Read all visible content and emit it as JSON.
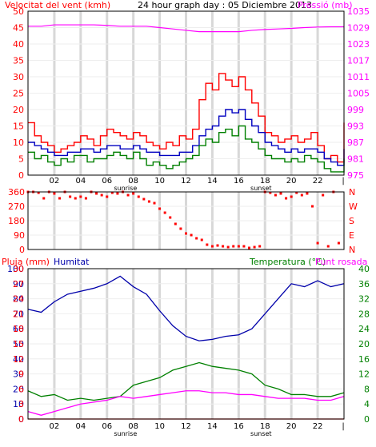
{
  "header": {
    "left_title": "Velocitat del vent (kmh)",
    "center_title": "24 hour graph day : 05 Diciembre 2013",
    "right_title": "Pressió (mb)"
  },
  "colors": {
    "gust": "#ff0000",
    "wind": "#0000c0",
    "wind_green": "#008000",
    "pressure": "#ff00ff",
    "direction": "#ff0000",
    "humidity": "#0000aa",
    "temperature": "#008000",
    "dewpoint": "#ff00ff",
    "rain": "#ff0000",
    "grid_band": "#d8d8d8",
    "frame": "#000000"
  },
  "chart_data": [
    {
      "type": "line",
      "panel": "wind-pressure",
      "x_tick_labels": [
        "02",
        "04",
        "06",
        "08",
        "10",
        "12",
        "14",
        "16",
        "18",
        "20",
        "22"
      ],
      "sunrise_label": "sunrise",
      "sunset_label": "sunset",
      "y_left": {
        "label": "Velocitat del vent (kmh)",
        "ticks": [
          "50",
          "45",
          "40",
          "35",
          "30",
          "25",
          "20",
          "15",
          "10",
          "5",
          "0"
        ],
        "lim": [
          0,
          50
        ]
      },
      "y_right": {
        "label": "Pressió (mb)",
        "ticks": [
          "1035",
          "1029",
          "1023",
          "1017",
          "1011",
          "1005",
          "999",
          "993",
          "987",
          "981",
          "975"
        ],
        "lim": [
          975,
          1035
        ]
      },
      "grid": true,
      "series": [
        {
          "key": "gust",
          "hours": [
            0,
            0.5,
            1,
            1.5,
            2,
            2.5,
            3,
            3.5,
            4,
            4.5,
            5,
            5.5,
            6,
            6.5,
            7,
            7.5,
            8,
            8.5,
            9,
            9.5,
            10,
            10.5,
            11,
            11.5,
            12,
            12.5,
            13,
            13.5,
            14,
            14.5,
            15,
            15.5,
            16,
            16.5,
            17,
            17.5,
            18,
            18.5,
            19,
            19.5,
            20,
            20.5,
            21,
            21.5,
            22,
            22.5,
            23,
            23.5,
            24
          ],
          "values": [
            16,
            12,
            10,
            9,
            7,
            8,
            9,
            10,
            12,
            11,
            9,
            12,
            14,
            13,
            12,
            11,
            13,
            12,
            10,
            9,
            8,
            10,
            9,
            12,
            11,
            14,
            23,
            28,
            26,
            31,
            29,
            27,
            30,
            26,
            22,
            18,
            13,
            12,
            10,
            11,
            12,
            10,
            11,
            13,
            9,
            5,
            6,
            4,
            16
          ]
        },
        {
          "key": "wind",
          "hours": [
            0,
            0.5,
            1,
            1.5,
            2,
            2.5,
            3,
            3.5,
            4,
            4.5,
            5,
            5.5,
            6,
            6.5,
            7,
            7.5,
            8,
            8.5,
            9,
            9.5,
            10,
            10.5,
            11,
            11.5,
            12,
            12.5,
            13,
            13.5,
            14,
            14.5,
            15,
            15.5,
            16,
            16.5,
            17,
            17.5,
            18,
            18.5,
            19,
            19.5,
            20,
            20.5,
            21,
            21.5,
            22,
            22.5,
            23,
            23.5,
            24
          ],
          "values": [
            10,
            9,
            8,
            7,
            6,
            6,
            7,
            7,
            8,
            8,
            7,
            8,
            9,
            9,
            8,
            8,
            9,
            8,
            7,
            7,
            6,
            6,
            6,
            7,
            7,
            9,
            12,
            14,
            15,
            18,
            20,
            19,
            20,
            17,
            15,
            13,
            10,
            9,
            8,
            7,
            8,
            7,
            8,
            8,
            7,
            5,
            4,
            3,
            8
          ]
        },
        {
          "key": "wind_green",
          "hours": [
            0,
            0.5,
            1,
            1.5,
            2,
            2.5,
            3,
            3.5,
            4,
            4.5,
            5,
            5.5,
            6,
            6.5,
            7,
            7.5,
            8,
            8.5,
            9,
            9.5,
            10,
            10.5,
            11,
            11.5,
            12,
            12.5,
            13,
            13.5,
            14,
            14.5,
            15,
            15.5,
            16,
            16.5,
            17,
            17.5,
            18,
            18.5,
            19,
            19.5,
            20,
            20.5,
            21,
            21.5,
            22,
            22.5,
            23,
            23.5,
            24
          ],
          "values": [
            7,
            5,
            6,
            4,
            3,
            5,
            4,
            6,
            6,
            4,
            5,
            5,
            6,
            7,
            6,
            5,
            7,
            5,
            3,
            4,
            3,
            2,
            3,
            4,
            5,
            6,
            9,
            11,
            10,
            13,
            14,
            12,
            15,
            11,
            10,
            8,
            6,
            5,
            5,
            4,
            5,
            4,
            6,
            5,
            4,
            2,
            1,
            1,
            5
          ]
        },
        {
          "key": "pressure",
          "hours": [
            0,
            1,
            2,
            3,
            4,
            5,
            6,
            7,
            8,
            9,
            10,
            11,
            12,
            13,
            14,
            15,
            16,
            17,
            18,
            19,
            20,
            21,
            22,
            23,
            24
          ],
          "values": [
            1029.5,
            1029.5,
            1030,
            1030,
            1030,
            1030,
            1029.8,
            1029.5,
            1029.5,
            1029.5,
            1029,
            1028.5,
            1028,
            1027.5,
            1027.5,
            1027.5,
            1027.5,
            1028,
            1028.3,
            1028.5,
            1028.7,
            1029,
            1029.2,
            1029.3,
            1029.3
          ]
        }
      ]
    },
    {
      "type": "scatter",
      "panel": "wind-direction",
      "y_left_ticks": [
        "360",
        "270",
        "180",
        "90",
        "0"
      ],
      "y_right_ticks": [
        "N",
        "W",
        "S",
        "E",
        "N"
      ],
      "ylim": [
        0,
        360
      ],
      "hours": [
        0,
        0.4,
        0.8,
        1.2,
        1.6,
        2,
        2.4,
        2.8,
        3.2,
        3.6,
        4,
        4.4,
        4.8,
        5.2,
        5.6,
        6,
        6.4,
        6.8,
        7.2,
        7.6,
        8,
        8.4,
        8.8,
        9.2,
        9.6,
        10,
        10.4,
        10.8,
        11.2,
        11.6,
        12,
        12.4,
        12.8,
        13.2,
        13.6,
        14,
        14.4,
        14.8,
        15.2,
        15.6,
        16,
        16.4,
        16.8,
        17.2,
        17.6,
        18,
        18.4,
        18.8,
        19.2,
        19.6,
        20,
        20.4,
        20.8,
        21.2,
        21.6,
        22,
        22.4,
        22.8,
        23.2,
        23.6
      ],
      "degrees": [
        360,
        360,
        355,
        320,
        360,
        350,
        320,
        360,
        330,
        320,
        330,
        320,
        360,
        350,
        340,
        330,
        355,
        350,
        360,
        340,
        350,
        330,
        315,
        300,
        290,
        255,
        230,
        200,
        160,
        130,
        100,
        90,
        70,
        60,
        30,
        20,
        25,
        20,
        15,
        20,
        20,
        20,
        10,
        15,
        20,
        360,
        355,
        340,
        350,
        320,
        330,
        355,
        340,
        350,
        270,
        40,
        340,
        20,
        360,
        40
      ]
    },
    {
      "type": "line",
      "panel": "humidity-temperature",
      "x_tick_labels": [
        "02",
        "04",
        "06",
        "08",
        "10",
        "12",
        "14",
        "16",
        "18",
        "20",
        "22"
      ],
      "sunrise_label": "sunrise",
      "sunset_label": "sunset",
      "legend": {
        "rain": "Pluja (mm)",
        "humidity": "Humitat",
        "temperature": "Temperatura (°C)",
        "dewpoint": "Punt rosada"
      },
      "y_left_rain_ticks": [
        "30",
        "27",
        "24",
        "21",
        "18",
        "15",
        "12",
        "9",
        "6",
        "3",
        "0"
      ],
      "y_left_humidity_ticks": [
        "100",
        "90",
        "80",
        "70",
        "60",
        "50",
        "40",
        "30",
        "20",
        "10",
        "0"
      ],
      "y_right_ticks": [
        "40",
        "36",
        "32",
        "28",
        "24",
        "20",
        "16",
        "12",
        "8",
        "4",
        "0"
      ],
      "ylim_humidity": [
        0,
        100
      ],
      "ylim_temperature": [
        0,
        40
      ],
      "ylim_rain": [
        0,
        30
      ],
      "grid": true,
      "series": [
        {
          "key": "humidity",
          "hours": [
            0,
            1,
            2,
            3,
            4,
            5,
            6,
            7,
            8,
            9,
            10,
            11,
            12,
            13,
            14,
            15,
            16,
            17,
            18,
            19,
            20,
            21,
            22,
            23,
            24
          ],
          "values": [
            73,
            71,
            78,
            83,
            85,
            87,
            90,
            95,
            88,
            83,
            72,
            62,
            55,
            52,
            53,
            55,
            56,
            60,
            70,
            80,
            90,
            88,
            92,
            88,
            90
          ]
        },
        {
          "key": "temperature",
          "hours": [
            0,
            1,
            2,
            3,
            4,
            5,
            6,
            7,
            8,
            9,
            10,
            11,
            12,
            13,
            14,
            15,
            16,
            17,
            18,
            19,
            20,
            21,
            22,
            23,
            24
          ],
          "values": [
            7.5,
            6,
            6.5,
            5,
            5.5,
            5,
            5.5,
            6,
            9,
            10,
            11,
            13,
            14,
            15,
            14,
            13.5,
            13,
            12,
            9,
            8,
            6.5,
            6.5,
            6,
            6,
            7
          ]
        },
        {
          "key": "dewpoint",
          "hours": [
            0,
            1,
            2,
            3,
            4,
            5,
            6,
            7,
            8,
            9,
            10,
            11,
            12,
            13,
            14,
            15,
            16,
            17,
            18,
            19,
            20,
            21,
            22,
            23,
            24
          ],
          "values": [
            2,
            1,
            2,
            3,
            4,
            4.5,
            5,
            6,
            5.5,
            6,
            6.5,
            7,
            7.5,
            7.5,
            7,
            7,
            6.5,
            6.5,
            6,
            5.5,
            5.5,
            5.5,
            5,
            5,
            6
          ]
        },
        {
          "key": "rain",
          "hours": [
            0,
            24
          ],
          "values": [
            0,
            0
          ]
        }
      ]
    }
  ]
}
